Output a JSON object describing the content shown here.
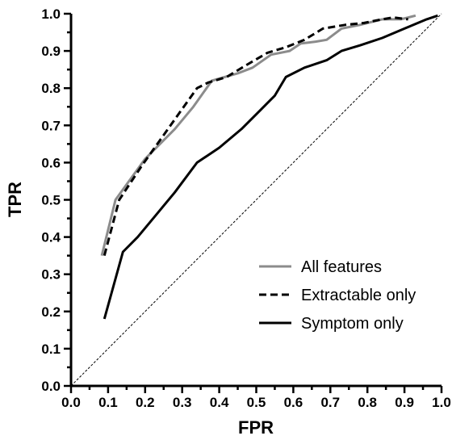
{
  "chart_data": {
    "type": "line",
    "xlabel": "FPR",
    "ylabel": "TPR",
    "xlim": [
      0.0,
      1.0
    ],
    "ylim": [
      0.0,
      1.0
    ],
    "x_ticks": [
      "0.0",
      "0.1",
      "0.2",
      "0.3",
      "0.4",
      "0.5",
      "0.6",
      "0.7",
      "0.8",
      "0.9",
      "1.0"
    ],
    "y_ticks": [
      "0.0",
      "0.1",
      "0.2",
      "0.3",
      "0.4",
      "0.5",
      "0.6",
      "0.7",
      "0.8",
      "0.9",
      "1.0"
    ],
    "grid": false,
    "legend_position": "bottom-right",
    "reference_line": {
      "x": [
        0.0,
        1.0
      ],
      "y": [
        0.0,
        1.0
      ],
      "style": "dashed",
      "color": "#000000"
    },
    "series": [
      {
        "name": "All features",
        "color": "#8c8c8c",
        "style": "solid",
        "x": [
          0.083,
          0.12,
          0.2,
          0.28,
          0.33,
          0.38,
          0.45,
          0.49,
          0.54,
          0.59,
          0.62,
          0.66,
          0.69,
          0.73,
          0.78,
          0.84,
          0.89,
          0.93
        ],
        "y": [
          0.35,
          0.5,
          0.61,
          0.69,
          0.75,
          0.82,
          0.84,
          0.855,
          0.89,
          0.9,
          0.92,
          0.925,
          0.93,
          0.96,
          0.97,
          0.985,
          0.985,
          0.995
        ]
      },
      {
        "name": "Extractable only",
        "color": "#000000",
        "style": "dashed",
        "x": [
          0.09,
          0.13,
          0.19,
          0.24,
          0.29,
          0.34,
          0.37,
          0.42,
          0.47,
          0.53,
          0.58,
          0.63,
          0.68,
          0.74,
          0.79,
          0.84,
          0.87,
          0.91
        ],
        "y": [
          0.35,
          0.5,
          0.59,
          0.66,
          0.73,
          0.8,
          0.815,
          0.83,
          0.86,
          0.895,
          0.91,
          0.93,
          0.96,
          0.97,
          0.975,
          0.985,
          0.99,
          0.985
        ]
      },
      {
        "name": "Symptom only",
        "color": "#000000",
        "style": "solid",
        "x": [
          0.09,
          0.14,
          0.18,
          0.23,
          0.28,
          0.34,
          0.4,
          0.46,
          0.51,
          0.55,
          0.58,
          0.63,
          0.69,
          0.73,
          0.78,
          0.84,
          0.9,
          0.96,
          0.99
        ],
        "y": [
          0.18,
          0.36,
          0.4,
          0.46,
          0.52,
          0.6,
          0.64,
          0.69,
          0.74,
          0.78,
          0.83,
          0.855,
          0.875,
          0.9,
          0.915,
          0.935,
          0.96,
          0.985,
          0.995
        ]
      }
    ]
  }
}
